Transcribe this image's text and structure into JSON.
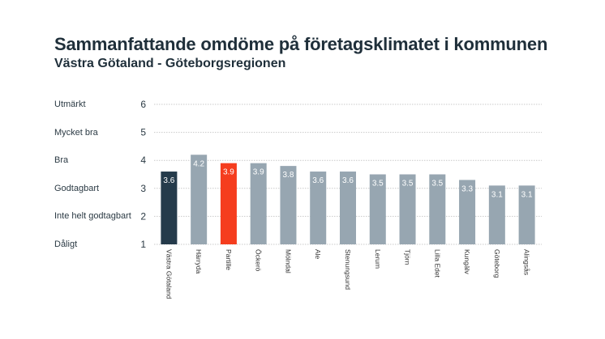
{
  "chart_data": {
    "type": "bar",
    "title": "Sammanfattande omdöme på företagsklimatet i kommunen",
    "subtitle": "Västra Götaland - Göteborgsregionen",
    "xlabel": "",
    "ylabel": "",
    "ylim": [
      1,
      6
    ],
    "yticks": [
      1,
      2,
      3,
      4,
      5,
      6
    ],
    "ytick_categories": [
      {
        "value": 6,
        "label": "Utmärkt"
      },
      {
        "value": 5,
        "label": "Mycket bra"
      },
      {
        "value": 4,
        "label": "Bra"
      },
      {
        "value": 3,
        "label": "Godtagbart"
      },
      {
        "value": 2,
        "label": "Inte helt godtagbart"
      },
      {
        "value": 1,
        "label": "Dåligt"
      }
    ],
    "grid": true,
    "categories": [
      "Västra Götaland",
      "Härryda",
      "Partille",
      "Öckerö",
      "Mölndal",
      "Ale",
      "Stenungsund",
      "Lerum",
      "Tjörn",
      "Lilla Edet",
      "Kungälv",
      "Göteborg",
      "Alingsås"
    ],
    "values": [
      3.6,
      4.2,
      3.9,
      3.9,
      3.8,
      3.6,
      3.6,
      3.5,
      3.5,
      3.5,
      3.3,
      3.1,
      3.1
    ],
    "data_labels": [
      "3.6",
      "4.2",
      "3.9",
      "3.9",
      "3.8",
      "3.6",
      "3.6",
      "3.5",
      "3.5",
      "3.5",
      "3.3",
      "3.1",
      "3.1"
    ],
    "colors": {
      "region": "#253b4b",
      "highlight": "#f53d1e",
      "default": "#97a6b1",
      "grid": "#c9c9c9"
    },
    "bar_color_roles": [
      "region",
      "default",
      "highlight",
      "default",
      "default",
      "default",
      "default",
      "default",
      "default",
      "default",
      "default",
      "default",
      "default"
    ]
  }
}
